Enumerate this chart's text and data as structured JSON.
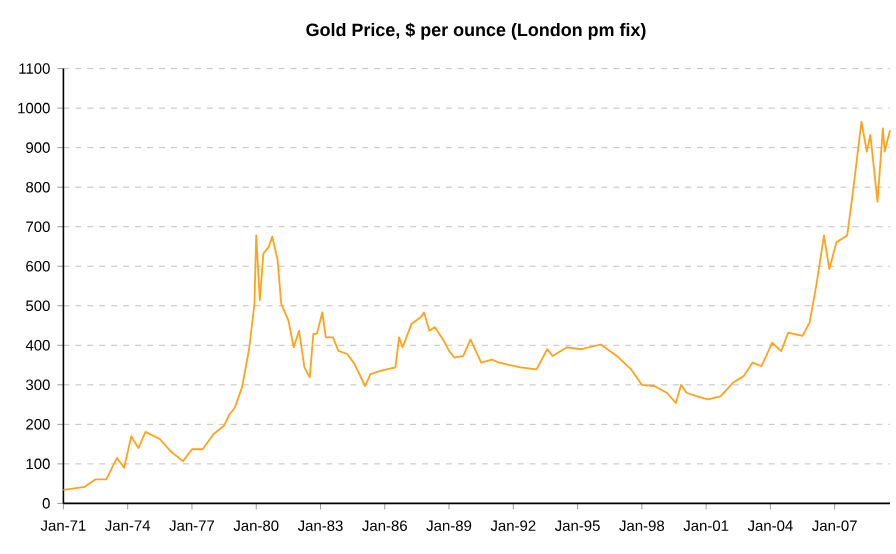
{
  "chart_data": {
    "type": "line",
    "title": "Gold Price, $ per ounce (London pm fix)",
    "series": [
      {
        "color": "#ffa31a",
        "x": [
          "1971-01",
          "1972-01",
          "1972-07",
          "1973-01",
          "1973-07",
          "1973-11",
          "1974-03",
          "1974-07",
          "1974-11",
          "1975-07",
          "1976-01",
          "1976-08",
          "1977-01",
          "1977-07",
          "1978-01",
          "1978-07",
          "1978-10",
          "1979-01",
          "1979-05",
          "1979-09",
          "1979-12",
          "1980-01",
          "1980-03",
          "1980-05",
          "1980-08",
          "1980-10",
          "1981-01",
          "1981-03",
          "1981-07",
          "1981-10",
          "1982-01",
          "1982-04",
          "1982-07",
          "1982-09",
          "1982-11",
          "1983-02",
          "1983-04",
          "1983-08",
          "1983-11",
          "1984-04",
          "1984-08",
          "1985-02",
          "1985-05",
          "1985-11",
          "1986-02",
          "1986-07",
          "1986-09",
          "1986-11",
          "1987-04",
          "1987-09",
          "1987-11",
          "1988-02",
          "1988-05",
          "1988-10",
          "1989-01",
          "1989-04",
          "1989-09",
          "1990-01",
          "1990-07",
          "1991-01",
          "1991-05",
          "1992-05",
          "1993-02",
          "1993-08",
          "1993-11",
          "1994-07",
          "1995-03",
          "1996-02",
          "1996-11",
          "1997-07",
          "1998-01",
          "1998-08",
          "1999-03",
          "1999-08",
          "1999-11",
          "2000-02",
          "2000-08",
          "2001-02",
          "2001-09",
          "2002-04",
          "2002-10",
          "2003-03",
          "2003-08",
          "2004-02",
          "2004-07",
          "2004-11",
          "2005-07",
          "2005-11",
          "2006-03",
          "2006-07",
          "2006-10",
          "2007-02",
          "2007-08",
          "2007-11",
          "2008-04",
          "2008-07",
          "2008-09",
          "2009-01",
          "2009-04",
          "2009-05",
          "2009-08"
        ],
        "values": [
          34,
          42,
          61,
          61,
          115,
          90,
          170,
          140,
          181,
          163,
          132,
          107,
          137,
          137,
          175,
          197,
          225,
          242,
          293,
          390,
          505,
          678,
          514,
          632,
          649,
          675,
          615,
          505,
          463,
          395,
          437,
          344,
          319,
          429,
          429,
          483,
          420,
          420,
          386,
          378,
          353,
          297,
          327,
          336,
          339,
          344,
          420,
          395,
          454,
          471,
          483,
          437,
          446,
          412,
          386,
          369,
          373,
          415,
          356,
          364,
          356,
          344,
          339,
          390,
          373,
          395,
          390,
          402,
          373,
          339,
          300,
          297,
          280,
          254,
          300,
          280,
          271,
          263,
          271,
          305,
          322,
          356,
          347,
          407,
          385,
          432,
          424,
          458,
          559,
          678,
          593,
          661,
          678,
          780,
          966,
          890,
          932,
          763,
          949,
          890,
          944
        ]
      }
    ],
    "xlim": [
      "1971-01",
      "2009-08"
    ],
    "xticks": [
      {
        "value": "1971-01",
        "label": "Jan-71"
      },
      {
        "value": "1974-01",
        "label": "Jan-74"
      },
      {
        "value": "1977-01",
        "label": "Jan-77"
      },
      {
        "value": "1980-01",
        "label": "Jan-80"
      },
      {
        "value": "1983-01",
        "label": "Jan-83"
      },
      {
        "value": "1986-01",
        "label": "Jan-86"
      },
      {
        "value": "1989-01",
        "label": "Jan-89"
      },
      {
        "value": "1992-01",
        "label": "Jan-92"
      },
      {
        "value": "1995-01",
        "label": "Jan-95"
      },
      {
        "value": "1998-01",
        "label": "Jan-98"
      },
      {
        "value": "2001-01",
        "label": "Jan-01"
      },
      {
        "value": "2004-01",
        "label": "Jan-04"
      },
      {
        "value": "2007-01",
        "label": "Jan-07"
      }
    ],
    "ylim": [
      0,
      1100
    ],
    "yticks": [
      0,
      100,
      200,
      300,
      400,
      500,
      600,
      700,
      800,
      900,
      1000,
      1100
    ],
    "grid": "y",
    "marker": "none",
    "line_style": "solid"
  }
}
